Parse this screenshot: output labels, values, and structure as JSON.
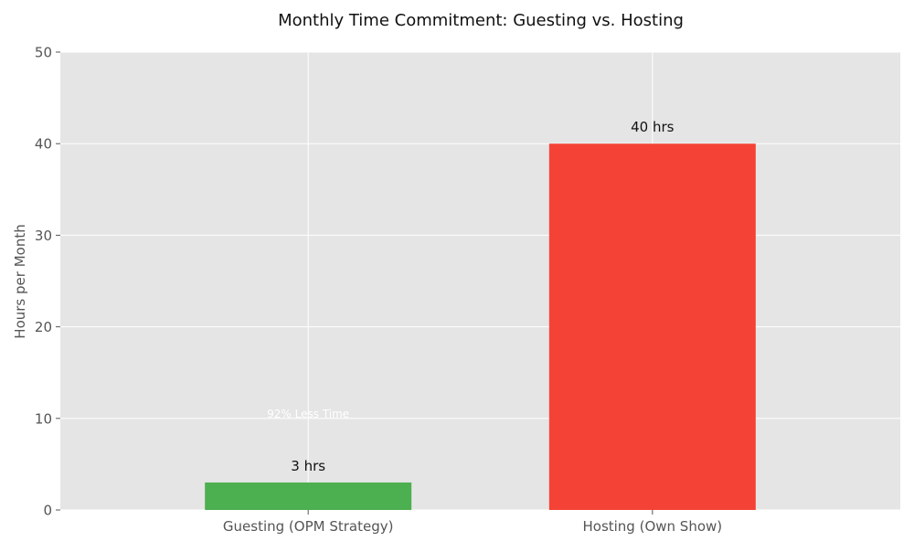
{
  "chart_data": {
    "type": "bar",
    "title": "Monthly Time Commitment: Guesting vs. Hosting",
    "xlabel": "",
    "ylabel": "Hours per Month",
    "categories": [
      "Guesting (OPM Strategy)",
      "Hosting (Own Show)"
    ],
    "values": [
      3,
      40
    ],
    "value_labels": [
      "3 hrs",
      "40 hrs"
    ],
    "colors": [
      "#4caf50",
      "#f44336"
    ],
    "ylim": [
      0,
      50
    ],
    "yticks": [
      0,
      10,
      20,
      30,
      40,
      50
    ],
    "grid": true,
    "annotation": {
      "text": "92% Less Time",
      "x_category": 0,
      "y": 10,
      "color": "#ffffff"
    },
    "plot_background": "#e5e5e5"
  }
}
